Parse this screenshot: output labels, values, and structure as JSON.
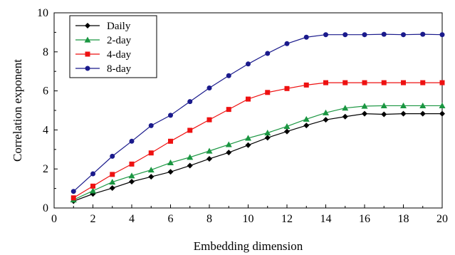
{
  "chart_data": {
    "type": "line",
    "xlabel": "Embedding dimension",
    "ylabel": "Correlation exponent",
    "xlim": [
      0,
      20
    ],
    "ylim": [
      0,
      10
    ],
    "xticks": [
      "0",
      "2",
      "4",
      "6",
      "8",
      "10",
      "12",
      "14",
      "16",
      "18",
      "20"
    ],
    "yticks": [
      "0",
      "2",
      "4",
      "6",
      "8",
      "10"
    ],
    "grid": false,
    "legend_position": "top-left",
    "x": [
      1,
      2,
      3,
      4,
      5,
      6,
      7,
      8,
      9,
      10,
      11,
      12,
      13,
      14,
      15,
      16,
      17,
      18,
      19,
      20
    ],
    "series": [
      {
        "name": "Daily",
        "color": "#000000",
        "marker": "diamond",
        "values": [
          0.35,
          0.72,
          1.02,
          1.35,
          1.6,
          1.85,
          2.17,
          2.52,
          2.84,
          3.22,
          3.6,
          3.92,
          4.23,
          4.52,
          4.68,
          4.83,
          4.8,
          4.83,
          4.83,
          4.83
        ]
      },
      {
        "name": "2-day",
        "color": "#1a9641",
        "marker": "triangle",
        "values": [
          0.42,
          0.88,
          1.33,
          1.65,
          1.95,
          2.32,
          2.6,
          2.92,
          3.25,
          3.58,
          3.85,
          4.18,
          4.55,
          4.88,
          5.12,
          5.22,
          5.24,
          5.24,
          5.24,
          5.24
        ]
      },
      {
        "name": "4-day",
        "color": "#ee1111",
        "marker": "square",
        "values": [
          0.52,
          1.12,
          1.72,
          2.25,
          2.82,
          3.42,
          3.98,
          4.52,
          5.05,
          5.58,
          5.92,
          6.12,
          6.3,
          6.42,
          6.42,
          6.42,
          6.42,
          6.42,
          6.42,
          6.42
        ]
      },
      {
        "name": "8-day",
        "color": "#1a1a8c",
        "marker": "circle",
        "values": [
          0.85,
          1.75,
          2.65,
          3.42,
          4.22,
          4.75,
          5.45,
          6.15,
          6.78,
          7.38,
          7.92,
          8.42,
          8.75,
          8.88,
          8.88,
          8.88,
          8.9,
          8.88,
          8.9,
          8.88
        ]
      }
    ]
  }
}
